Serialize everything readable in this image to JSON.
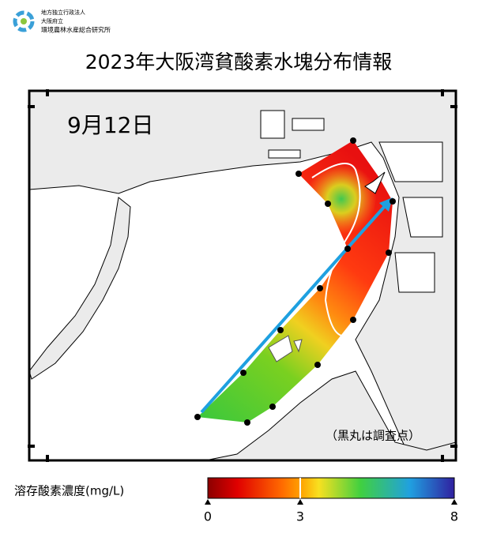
{
  "header": {
    "org_lines": [
      "地方独立行政法人",
      "大阪府立",
      "環境農林水産総合研究所"
    ]
  },
  "title": "2023年大阪湾貧酸素水塊分布情報",
  "map": {
    "date": "9月12日",
    "note": "（黒丸は調査点）"
  },
  "colorbar": {
    "label": "溶存酸素濃度(mg/L)",
    "range": [
      0,
      8
    ],
    "ticks": [
      0,
      3,
      8
    ]
  }
}
